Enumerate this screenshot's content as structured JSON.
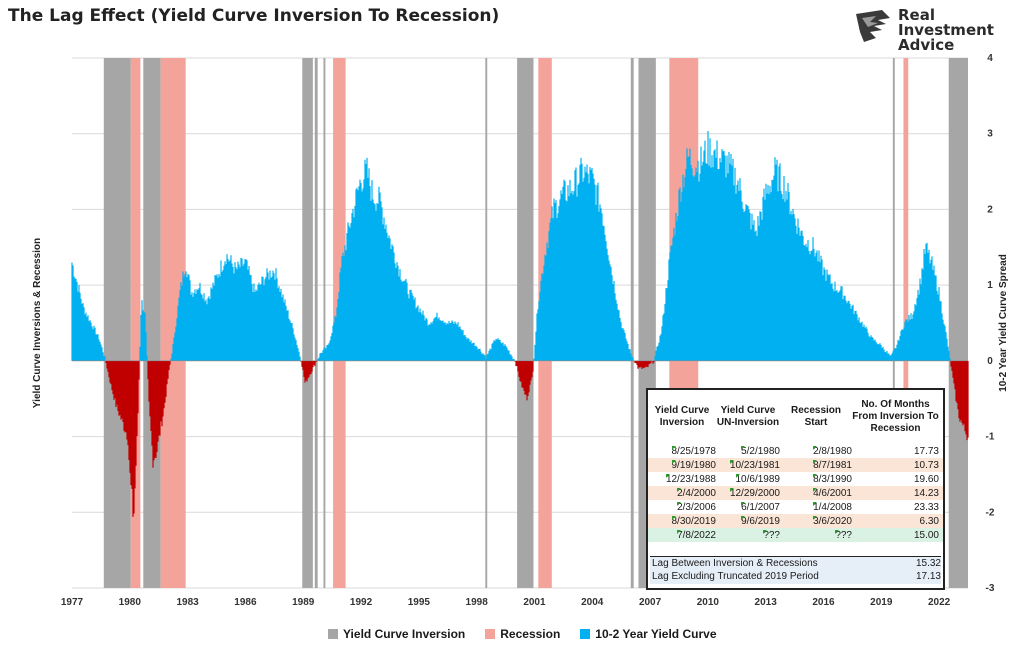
{
  "title": "The Lag Effect (Yield Curve Inversion To Recession)",
  "logo": {
    "line1": "Real",
    "line2": "Investment",
    "line3": "Advice"
  },
  "colors": {
    "inversion": "#a6a6a6",
    "recession": "#f4a39a",
    "curve_positive": "#00b0f0",
    "curve_negative": "#c00000",
    "row_highlight": "#fbe5d6",
    "row_current": "#d9f2e4",
    "flag": "#2a9d2a"
  },
  "chart_data": {
    "type": "area",
    "title": "The Lag Effect (Yield Curve Inversion To Recession)",
    "xlabel": "",
    "ylabel_left": "Yield Curve Inversions & Recession",
    "ylabel_right": "10-2 Year Yield Curve Spread",
    "x_range": [
      1977,
      2023.5
    ],
    "ylim": [
      -3,
      4
    ],
    "y_ticks": [
      "4",
      "3",
      "2",
      "1",
      "0",
      "-1",
      "-2",
      "-3"
    ],
    "x_ticks": [
      "1977",
      "1980",
      "1983",
      "1986",
      "1989",
      "1992",
      "1995",
      "1998",
      "2001",
      "2004",
      "2007",
      "2010",
      "2013",
      "2016",
      "2019",
      "2022"
    ],
    "grid": true,
    "legend_position": "bottom",
    "legend": [
      "Yield Curve Inversion",
      "Recession",
      "10-2 Year Yield Curve"
    ],
    "inversion_periods": [
      [
        1978.65,
        1980.05
      ],
      [
        1980.7,
        1981.6
      ],
      [
        1988.95,
        1989.5
      ],
      [
        1989.6,
        1989.75
      ],
      [
        1990.05,
        1990.15
      ],
      [
        1998.45,
        1998.55
      ],
      [
        2000.1,
        2000.95
      ],
      [
        2006.0,
        2006.15
      ],
      [
        2006.4,
        2007.3
      ],
      [
        2019.6,
        2019.7
      ],
      [
        2022.5,
        2023.5
      ]
    ],
    "recession_periods": [
      [
        1980.05,
        1980.55
      ],
      [
        1981.6,
        1982.9
      ],
      [
        1990.55,
        1991.2
      ],
      [
        2001.2,
        2001.9
      ],
      [
        2008.0,
        2009.5
      ],
      [
        2020.15,
        2020.4
      ]
    ],
    "curve": {
      "x": [
        1977.0,
        1977.3,
        1977.6,
        1978.0,
        1978.4,
        1978.7,
        1979.0,
        1979.3,
        1979.6,
        1979.9,
        1980.0,
        1980.2,
        1980.4,
        1980.6,
        1980.8,
        1981.0,
        1981.2,
        1981.4,
        1981.6,
        1981.8,
        1982.0,
        1982.3,
        1982.6,
        1982.9,
        1983.2,
        1983.6,
        1984.0,
        1984.5,
        1985.0,
        1985.5,
        1986.0,
        1986.5,
        1987.0,
        1987.5,
        1988.0,
        1988.5,
        1988.9,
        1989.1,
        1989.5,
        1989.9,
        1990.3,
        1990.7,
        1991.0,
        1991.5,
        1992.0,
        1992.3,
        1992.6,
        1993.0,
        1993.5,
        1994.0,
        1994.5,
        1995.0,
        1995.5,
        1996.0,
        1996.5,
        1997.0,
        1997.5,
        1998.0,
        1998.5,
        1999.0,
        1999.5,
        2000.0,
        2000.3,
        2000.6,
        2000.9,
        2001.2,
        2001.6,
        2002.0,
        2002.5,
        2003.0,
        2003.5,
        2004.0,
        2004.5,
        2005.0,
        2005.5,
        2006.0,
        2006.4,
        2006.8,
        2007.2,
        2007.6,
        2008.0,
        2008.3,
        2008.6,
        2009.0,
        2009.3,
        2009.6,
        2010.0,
        2010.5,
        2011.0,
        2011.5,
        2012.0,
        2012.5,
        2013.0,
        2013.5,
        2014.0,
        2014.5,
        2015.0,
        2015.5,
        2016.0,
        2016.5,
        2017.0,
        2017.5,
        2018.0,
        2018.5,
        2019.0,
        2019.5,
        2019.8,
        2020.2,
        2020.6,
        2021.0,
        2021.3,
        2021.6,
        2022.0,
        2022.4,
        2022.7,
        2023.0,
        2023.3,
        2023.5
      ],
      "y": [
        1.3,
        1.0,
        0.7,
        0.5,
        0.3,
        0.05,
        -0.3,
        -0.6,
        -0.8,
        -1.0,
        -1.5,
        -2.1,
        -0.9,
        0.8,
        0.6,
        -0.6,
        -1.3,
        -1.2,
        -0.9,
        -0.6,
        -0.2,
        0.3,
        0.9,
        1.3,
        0.9,
        1.0,
        0.8,
        1.1,
        1.4,
        1.2,
        1.3,
        0.9,
        1.1,
        1.2,
        0.8,
        0.4,
        0.0,
        -0.3,
        -0.1,
        0.1,
        0.2,
        0.6,
        1.3,
        1.9,
        2.4,
        2.5,
        2.2,
        2.1,
        1.6,
        1.2,
        0.9,
        0.7,
        0.5,
        0.6,
        0.5,
        0.5,
        0.3,
        0.2,
        0.05,
        0.3,
        0.2,
        0.0,
        -0.3,
        -0.5,
        -0.2,
        0.8,
        1.5,
        2.0,
        2.2,
        2.3,
        2.5,
        2.4,
        2.0,
        1.2,
        0.5,
        0.1,
        -0.1,
        -0.1,
        0.0,
        0.4,
        1.3,
        1.8,
        2.3,
        2.7,
        2.6,
        2.6,
        2.8,
        2.7,
        2.6,
        2.4,
        2.0,
        1.7,
        2.2,
        2.5,
        2.3,
        1.9,
        1.6,
        1.5,
        1.2,
        1.0,
        0.9,
        0.7,
        0.5,
        0.3,
        0.2,
        0.05,
        0.2,
        0.5,
        0.6,
        1.0,
        1.5,
        1.3,
        0.9,
        0.3,
        -0.2,
        -0.7,
        -0.9,
        -1.0
      ]
    }
  },
  "table": {
    "headers": [
      "Yield Curve Inversion",
      "Yield Curve UN-Inversion",
      "Recession Start",
      "No. Of Months From Inversion To Recession"
    ],
    "rows": [
      {
        "inversion": "8/25/1978",
        "uninversion": "5/2/1980",
        "recession": "2/8/1980",
        "months": "17.73"
      },
      {
        "inversion": "9/19/1980",
        "uninversion": "10/23/1981",
        "recession": "8/7/1981",
        "months": "10.73"
      },
      {
        "inversion": "12/23/1988",
        "uninversion": "10/6/1989",
        "recession": "8/3/1990",
        "months": "19.60"
      },
      {
        "inversion": "2/4/2000",
        "uninversion": "12/29/2000",
        "recession": "4/6/2001",
        "months": "14.23"
      },
      {
        "inversion": "2/3/2006",
        "uninversion": "6/1/2007",
        "recession": "1/4/2008",
        "months": "23.33"
      },
      {
        "inversion": "8/30/2019",
        "uninversion": "9/6/2019",
        "recession": "3/6/2020",
        "months": "6.30"
      }
    ],
    "current": {
      "inversion": "7/8/2022",
      "uninversion": "???",
      "recession": "???",
      "months": "15.00"
    },
    "summary": [
      {
        "label": "Lag Between Inversion & Recessions",
        "value": "15.32"
      },
      {
        "label": "Lag Excluding Truncated 2019 Period",
        "value": "17.13"
      }
    ]
  }
}
